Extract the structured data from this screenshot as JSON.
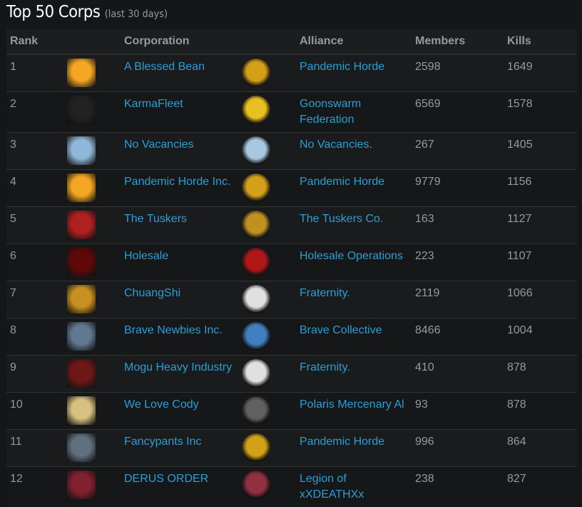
{
  "page": {
    "title": "Top 50 Corps",
    "subtitle": "(last 30 days)"
  },
  "table": {
    "headers": {
      "rank": "Rank",
      "corporation": "Corporation",
      "alliance": "Alliance",
      "members": "Members",
      "kills": "Kills"
    },
    "rows": [
      {
        "rank": "1",
        "corporation": "A Blessed Bean",
        "corp_icon": "biohazard-logo",
        "corp_color": "#f5a623",
        "alliance": "Pandemic Horde",
        "alliance_icon": "horde-logo",
        "alliance_color": "#d4a017",
        "members": "2598",
        "kills": "1649"
      },
      {
        "rank": "2",
        "corporation": "KarmaFleet",
        "corp_icon": "karmafleet-logo",
        "corp_color": "#222222",
        "alliance": "Goonswarm Federation",
        "alliance_icon": "bee-logo",
        "alliance_color": "#e8c020",
        "members": "6569",
        "kills": "1578"
      },
      {
        "rank": "3",
        "corporation": "No Vacancies",
        "corp_icon": "no-vacancies-logo",
        "corp_color": "#8fb8d8",
        "alliance": "No Vacancies.",
        "alliance_icon": "shark-logo",
        "alliance_color": "#a8c8e0",
        "members": "267",
        "kills": "1405"
      },
      {
        "rank": "4",
        "corporation": "Pandemic Horde Inc.",
        "corp_icon": "biohazard-logo",
        "corp_color": "#f5a623",
        "alliance": "Pandemic Horde",
        "alliance_icon": "horde-logo",
        "alliance_color": "#d4a017",
        "members": "9779",
        "kills": "1156"
      },
      {
        "rank": "5",
        "corporation": "The Tuskers",
        "corp_icon": "tuskers-logo",
        "corp_color": "#b02020",
        "alliance": "The Tuskers Co.",
        "alliance_icon": "tuskers-co-logo",
        "alliance_color": "#c09020",
        "members": "163",
        "kills": "1127"
      },
      {
        "rank": "6",
        "corporation": "Holesale",
        "corp_icon": "holesale-logo",
        "corp_color": "#600808",
        "alliance": "Holesale Operations",
        "alliance_icon": "holesale-ops-logo",
        "alliance_color": "#b01818",
        "members": "223",
        "kills": "1107"
      },
      {
        "rank": "7",
        "corporation": "ChuangShi",
        "corp_icon": "dragon-logo",
        "corp_color": "#c89020",
        "alliance": "Fraternity.",
        "alliance_icon": "panda-logo",
        "alliance_color": "#e0e0e0",
        "members": "2119",
        "kills": "1066"
      },
      {
        "rank": "8",
        "corporation": "Brave Newbies Inc.",
        "corp_icon": "target-logo",
        "corp_color": "#607890",
        "alliance": "Brave Collective",
        "alliance_icon": "brave-logo",
        "alliance_color": "#4080c0",
        "members": "8466",
        "kills": "1004"
      },
      {
        "rank": "9",
        "corporation": "Mogu Heavy Industry",
        "corp_icon": "mogu-logo",
        "corp_color": "#701818",
        "alliance": "Fraternity.",
        "alliance_icon": "panda-logo",
        "alliance_color": "#e0e0e0",
        "members": "410",
        "kills": "878"
      },
      {
        "rank": "10",
        "corporation": "We Love Cody",
        "corp_icon": "crossed-swords-logo",
        "corp_color": "#d8c080",
        "alliance": "Polaris Mercenary Al",
        "alliance_icon": "plague-doctor-logo",
        "alliance_color": "#606060",
        "members": "93",
        "kills": "878"
      },
      {
        "rank": "11",
        "corporation": "Fancypants Inc",
        "corp_icon": "fancypants-logo",
        "corp_color": "#607080",
        "alliance": "Pandemic Horde",
        "alliance_icon": "horde-logo",
        "alliance_color": "#d4a017",
        "members": "996",
        "kills": "864"
      },
      {
        "rank": "12",
        "corporation": "DERUS ORDER",
        "corp_icon": "derus-logo",
        "corp_color": "#802030",
        "alliance": "Legion of xXDEATHXx",
        "alliance_icon": "legion-logo",
        "alliance_color": "#903040",
        "members": "238",
        "kills": "827"
      }
    ]
  }
}
